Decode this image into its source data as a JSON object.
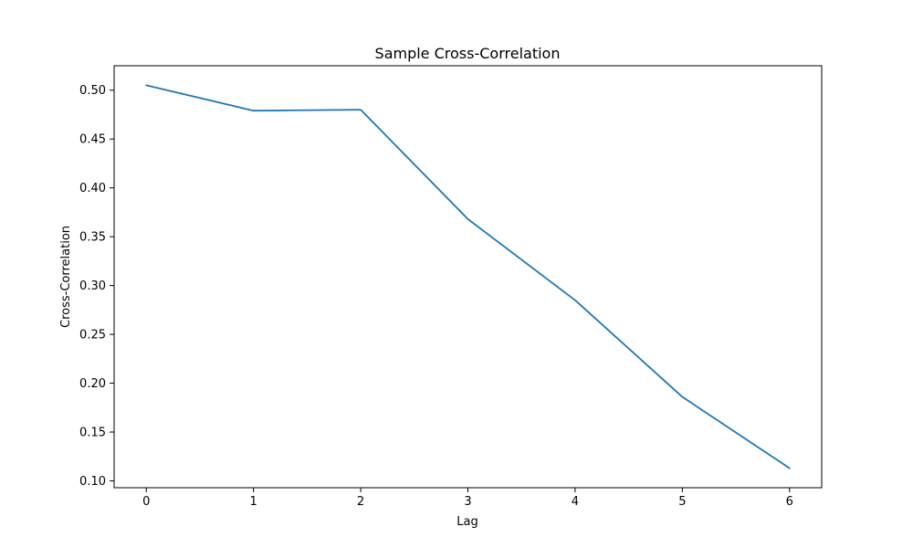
{
  "chart_data": {
    "type": "line",
    "title": "Sample Cross-Correlation",
    "xlabel": "Lag",
    "ylabel": "Cross-Correlation",
    "x": [
      0,
      1,
      2,
      3,
      4,
      5,
      6
    ],
    "series": [
      {
        "values": [
          0.505,
          0.479,
          0.48,
          0.368,
          0.285,
          0.186,
          0.113
        ],
        "color": "#1f77b4"
      }
    ],
    "xlim": [
      -0.3,
      6.3
    ],
    "ylim": [
      0.093,
      0.525
    ],
    "xticks": [
      0,
      1,
      2,
      3,
      4,
      5,
      6
    ],
    "yticks": [
      0.1,
      0.15,
      0.2,
      0.25,
      0.3,
      0.35,
      0.4,
      0.45,
      0.5
    ],
    "ytick_labels": [
      "0.10",
      "0.15",
      "0.20",
      "0.25",
      "0.30",
      "0.35",
      "0.40",
      "0.45",
      "0.50"
    ],
    "grid": false,
    "legend": "none"
  }
}
